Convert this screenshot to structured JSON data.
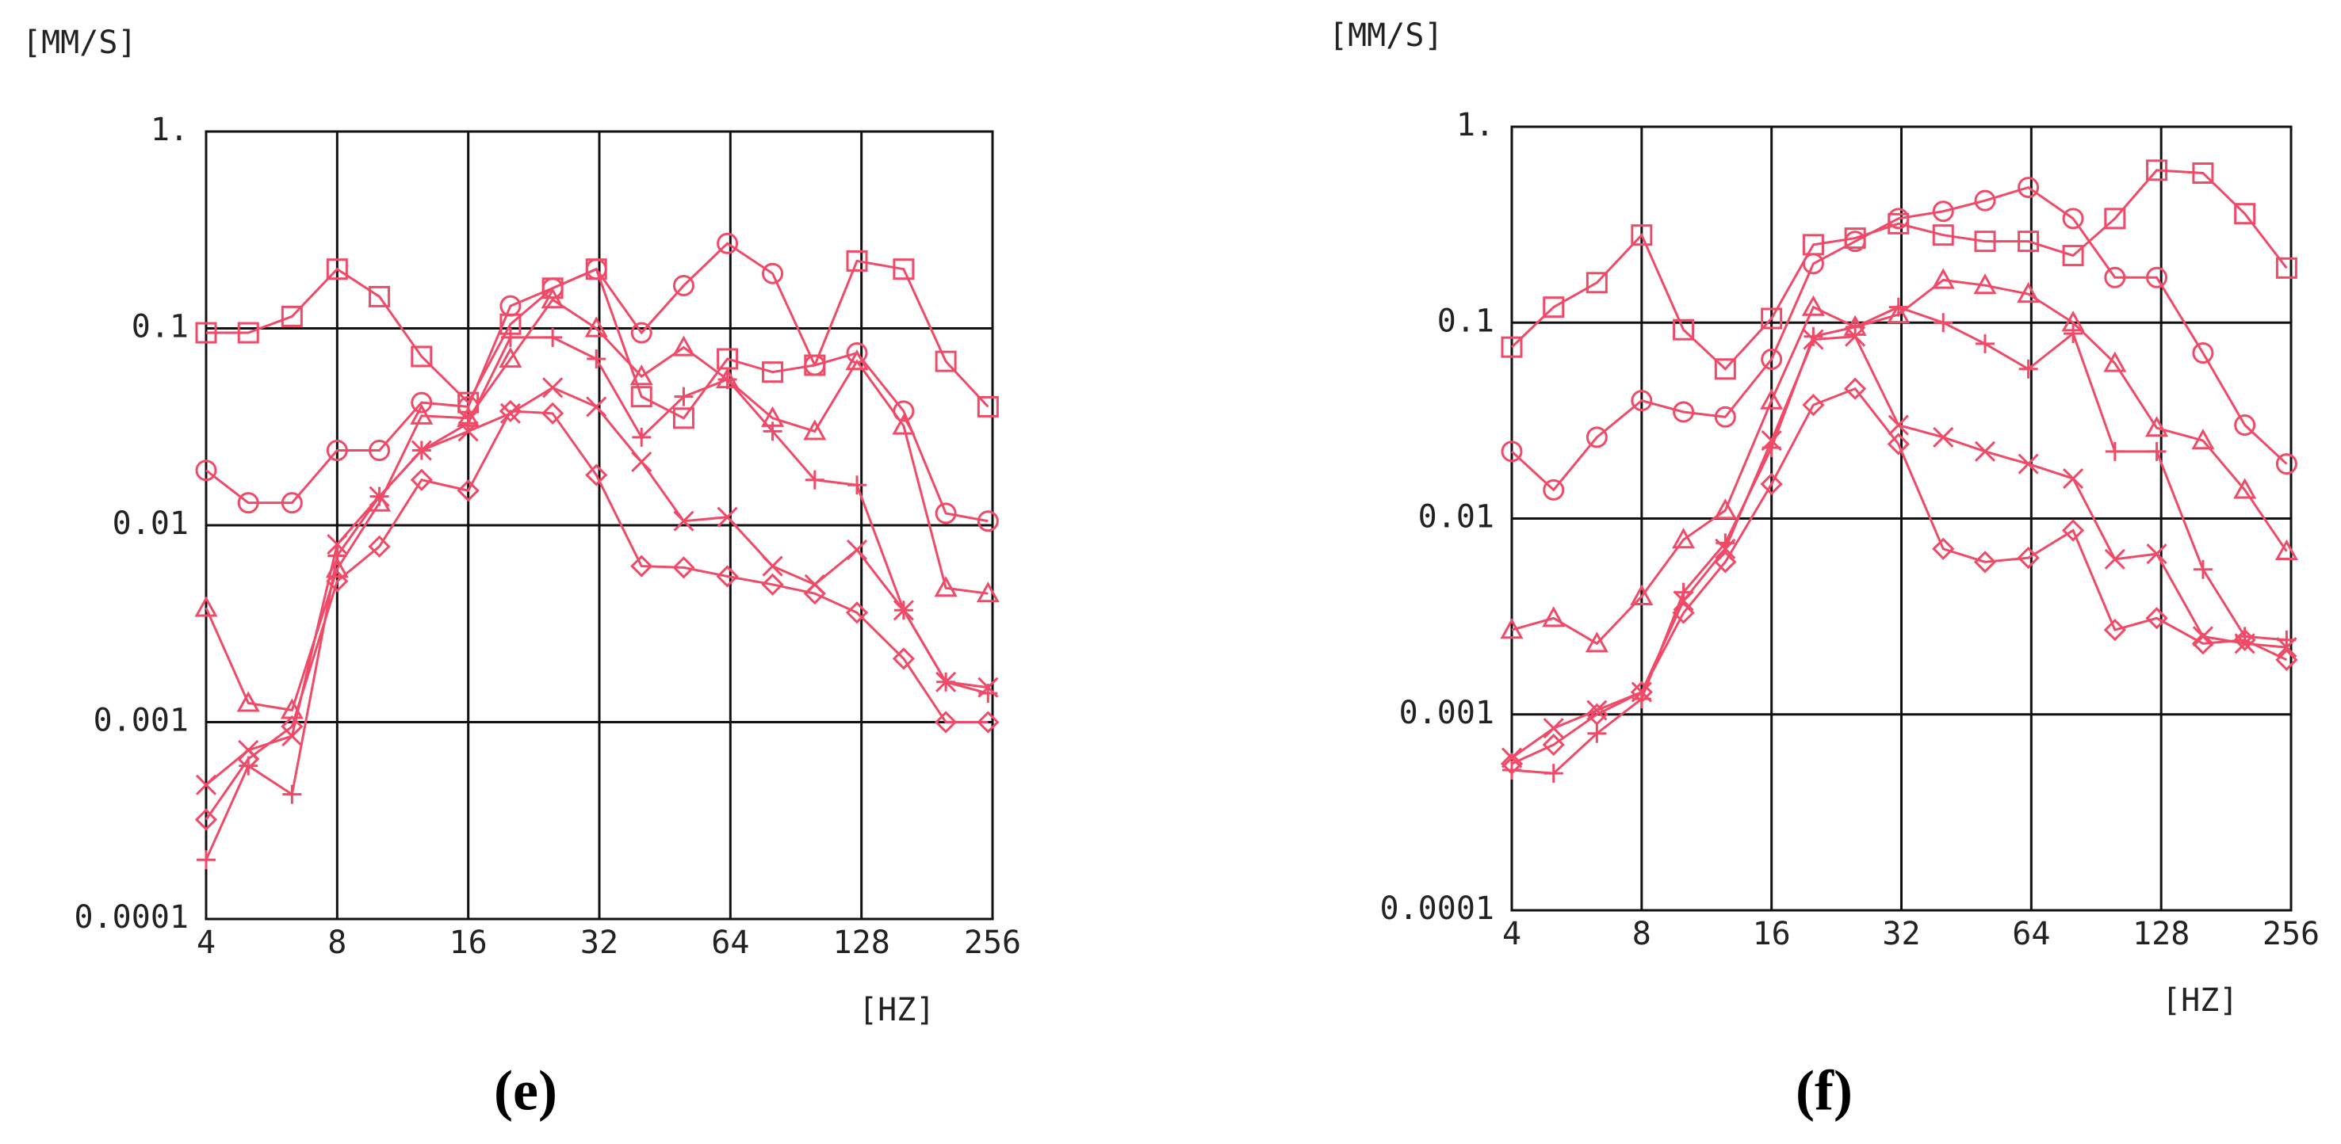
{
  "chart_data": [
    {
      "type": "line",
      "caption": "(e)",
      "ylabel": "[MM/S]",
      "xlabel": "[HZ]",
      "log_x": true,
      "log_y": true,
      "grid": true,
      "x": [
        4,
        5,
        6.3,
        8,
        10,
        12.5,
        16,
        20,
        25,
        31.5,
        40,
        50,
        63,
        80,
        100,
        125,
        160,
        200,
        250
      ],
      "xlim": [
        4,
        256
      ],
      "xticks": [
        4,
        8,
        16,
        32,
        64,
        128,
        256
      ],
      "ylim": [
        0.0001,
        1
      ],
      "yticks": [
        {
          "value": 1,
          "label": "1."
        },
        0.1,
        0.01,
        0.001,
        0.0001
      ],
      "series": [
        {
          "marker": "square",
          "color": "#ef4b68",
          "values": [
            0.095,
            0.095,
            0.115,
            0.2,
            0.145,
            0.072,
            0.042,
            0.105,
            0.16,
            0.2,
            0.045,
            0.035,
            0.07,
            0.06,
            0.065,
            0.22,
            0.2,
            0.068,
            0.04
          ]
        },
        {
          "marker": "circle",
          "color": "#ef4b68",
          "values": [
            0.019,
            0.013,
            0.013,
            0.024,
            0.024,
            0.042,
            0.04,
            0.13,
            0.16,
            0.2,
            0.095,
            0.165,
            0.27,
            0.19,
            0.065,
            0.075,
            0.038,
            0.0115,
            0.0105
          ]
        },
        {
          "marker": "triangle",
          "color": "#ef4b68",
          "values": [
            0.0038,
            0.00125,
            0.00115,
            0.006,
            0.013,
            0.036,
            0.035,
            0.07,
            0.14,
            0.1,
            0.057,
            0.08,
            0.055,
            0.035,
            0.03,
            0.068,
            0.032,
            0.0048,
            0.0045
          ]
        },
        {
          "marker": "plus",
          "color": "#ef4b68",
          "values": [
            0.0002,
            0.0006,
            0.00043,
            0.007,
            0.014,
            0.024,
            0.033,
            0.09,
            0.09,
            0.07,
            0.028,
            0.045,
            0.055,
            0.03,
            0.017,
            0.016,
            0.0037,
            0.0016,
            0.0014
          ]
        },
        {
          "marker": "cross",
          "color": "#ef4b68",
          "values": [
            0.00048,
            0.00072,
            0.00085,
            0.008,
            0.014,
            0.024,
            0.03,
            0.037,
            0.05,
            0.04,
            0.021,
            0.0105,
            0.011,
            0.0062,
            0.005,
            0.0075,
            0.0037,
            0.0016,
            0.0015
          ]
        },
        {
          "marker": "diamond",
          "color": "#ef4b68",
          "values": [
            0.00032,
            0.00065,
            0.00095,
            0.0052,
            0.0078,
            0.017,
            0.015,
            0.038,
            0.037,
            0.018,
            0.0062,
            0.0061,
            0.0055,
            0.005,
            0.0045,
            0.0036,
            0.0021,
            0.001,
            0.001
          ]
        }
      ]
    },
    {
      "type": "line",
      "caption": "(f)",
      "ylabel": "[MM/S]",
      "xlabel": "[HZ]",
      "log_x": true,
      "log_y": true,
      "grid": true,
      "x": [
        4,
        5,
        6.3,
        8,
        10,
        12.5,
        16,
        20,
        25,
        31.5,
        40,
        50,
        63,
        80,
        100,
        125,
        160,
        200,
        250
      ],
      "xlim": [
        4,
        256
      ],
      "xticks": [
        4,
        8,
        16,
        32,
        64,
        128,
        256
      ],
      "ylim": [
        0.0001,
        1
      ],
      "yticks": [
        {
          "value": 1,
          "label": "1."
        },
        0.1,
        0.01,
        0.001,
        0.0001
      ],
      "series": [
        {
          "marker": "square",
          "color": "#ef4b68",
          "values": [
            0.075,
            0.12,
            0.16,
            0.28,
            0.092,
            0.058,
            0.105,
            0.25,
            0.27,
            0.32,
            0.28,
            0.26,
            0.26,
            0.22,
            0.34,
            0.6,
            0.58,
            0.36,
            0.19
          ]
        },
        {
          "marker": "circle",
          "color": "#ef4b68",
          "values": [
            0.022,
            0.014,
            0.026,
            0.04,
            0.035,
            0.033,
            0.065,
            0.2,
            0.26,
            0.34,
            0.37,
            0.42,
            0.49,
            0.34,
            0.17,
            0.17,
            0.07,
            0.03,
            0.019
          ]
        },
        {
          "marker": "triangle",
          "color": "#ef4b68",
          "values": [
            0.0027,
            0.0031,
            0.0023,
            0.004,
            0.0078,
            0.011,
            0.04,
            0.12,
            0.095,
            0.11,
            0.165,
            0.155,
            0.14,
            0.1,
            0.062,
            0.029,
            0.025,
            0.014,
            0.0068
          ]
        },
        {
          "marker": "plus",
          "color": "#ef4b68",
          "values": [
            0.00052,
            0.0005,
            0.0008,
            0.0012,
            0.0042,
            0.0075,
            0.023,
            0.085,
            0.095,
            0.12,
            0.1,
            0.078,
            0.058,
            0.088,
            0.022,
            0.022,
            0.0055,
            0.0025,
            0.0024
          ]
        },
        {
          "marker": "cross",
          "color": "#ef4b68",
          "values": [
            0.0006,
            0.00085,
            0.00105,
            0.0013,
            0.0038,
            0.007,
            0.025,
            0.082,
            0.085,
            0.03,
            0.026,
            0.022,
            0.019,
            0.016,
            0.0062,
            0.0066,
            0.0025,
            0.0023,
            0.0022
          ]
        },
        {
          "marker": "diamond",
          "color": "#ef4b68",
          "values": [
            0.00056,
            0.0007,
            0.001,
            0.0013,
            0.0033,
            0.006,
            0.015,
            0.038,
            0.046,
            0.024,
            0.007,
            0.006,
            0.0063,
            0.0087,
            0.0027,
            0.0031,
            0.0023,
            0.0024,
            0.0019
          ]
        }
      ]
    }
  ]
}
